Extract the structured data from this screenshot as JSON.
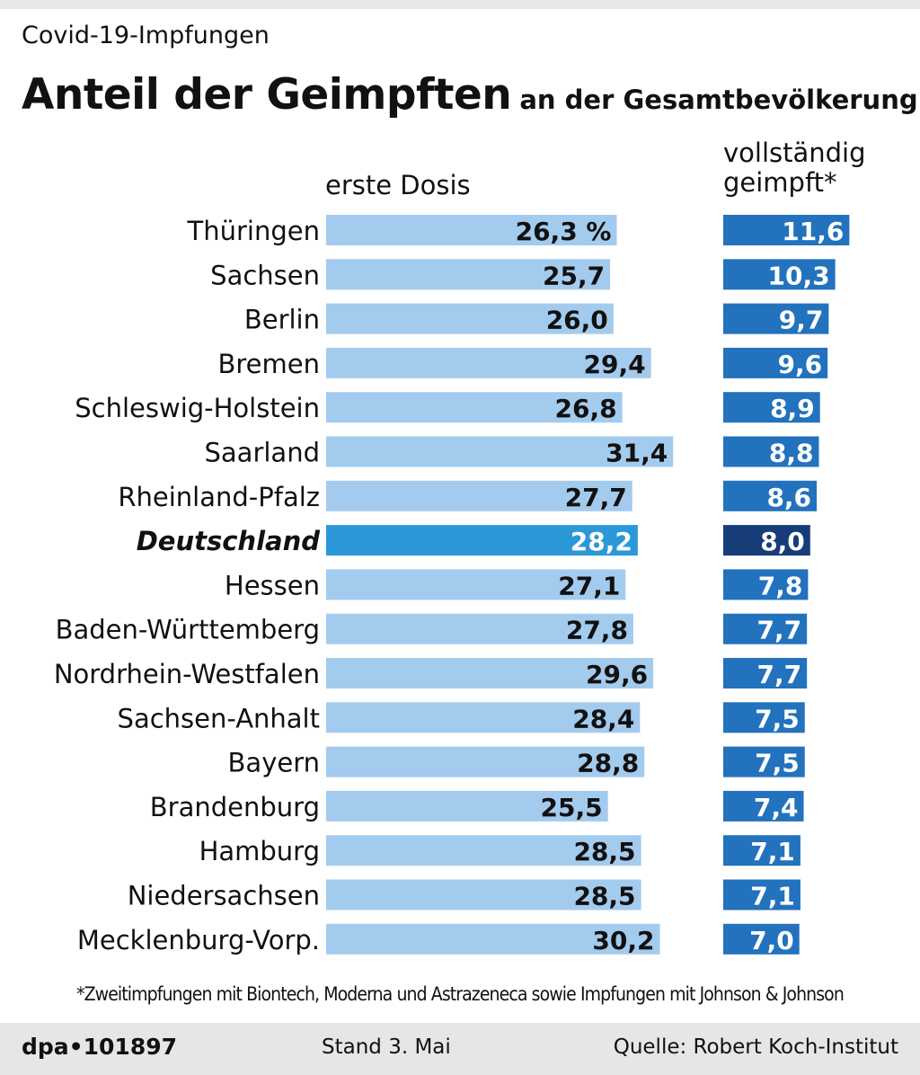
{
  "header": {
    "subtitle": "Covid-19-Impfungen",
    "title_main": "Anteil der Geimpften",
    "title_sub": "an der Gesamtbevölkerung"
  },
  "chart_data": {
    "type": "bar",
    "orientation": "horizontal",
    "title": "Anteil der Geimpften an der Gesamtbevölkerung",
    "unit": "%",
    "categories": [
      "Thüringen",
      "Sachsen",
      "Berlin",
      "Bremen",
      "Schleswig-Holstein",
      "Saarland",
      "Rheinland-Pfalz",
      "Deutschland",
      "Hessen",
      "Baden-Württemberg",
      "Nordrhein-Westfalen",
      "Sachsen-Anhalt",
      "Bayern",
      "Brandenburg",
      "Hamburg",
      "Niedersachsen",
      "Mecklenburg-Vorp."
    ],
    "highlight_category": "Deutschland",
    "series": [
      {
        "name": "erste Dosis",
        "values": [
          26.3,
          25.7,
          26.0,
          29.4,
          26.8,
          31.4,
          27.7,
          28.2,
          27.1,
          27.8,
          29.6,
          28.4,
          28.8,
          25.5,
          28.5,
          28.5,
          30.2
        ],
        "labels": [
          "26,3 %",
          "25,7",
          "26,0",
          "29,4",
          "26,8",
          "31,4",
          "27,7",
          "28,2",
          "27,1",
          "27,8",
          "29,6",
          "28,4",
          "28,8",
          "25,5",
          "28,5",
          "28,5",
          "30,2"
        ],
        "color": "#a3cbee",
        "highlight_color": "#2b98d8"
      },
      {
        "name": "vollständig geimpft*",
        "values": [
          11.6,
          10.3,
          9.7,
          9.6,
          8.9,
          8.8,
          8.6,
          8.0,
          7.8,
          7.7,
          7.7,
          7.5,
          7.5,
          7.4,
          7.1,
          7.1,
          7.0
        ],
        "labels": [
          "11,6",
          "10,3",
          "9,7",
          "9,6",
          "8,9",
          "8,8",
          "8,6",
          "8,0",
          "7,8",
          "7,7",
          "7,7",
          "7,5",
          "7,5",
          "7,4",
          "7,1",
          "7,1",
          "7,0"
        ],
        "color": "#2272bd",
        "highlight_color": "#173d78"
      }
    ],
    "column_labels": {
      "first_dose": "erste Dosis",
      "full_line1": "vollständig",
      "full_line2": "geimpft*"
    }
  },
  "footnote": "*Zweitimpfungen mit Biontech, Moderna und Astrazeneca sowie Impfungen mit Johnson & Johnson",
  "footer": {
    "brand": "dpa•101897",
    "stand": "Stand 3. Mai",
    "source": "Quelle: Robert Koch-Institut"
  }
}
